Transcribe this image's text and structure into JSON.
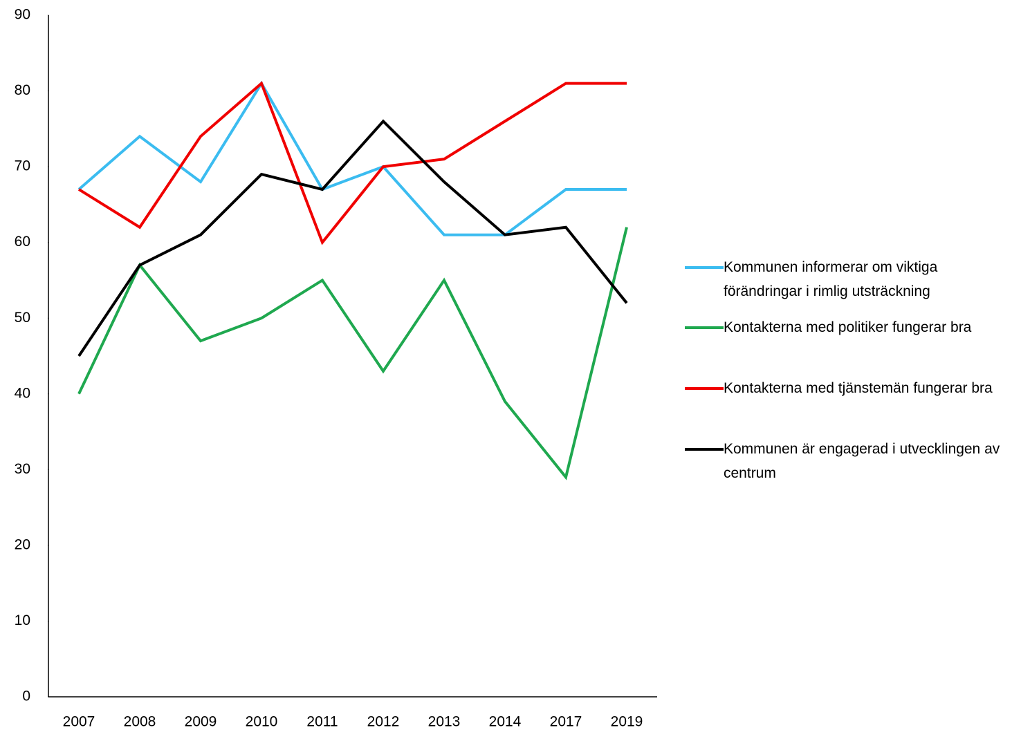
{
  "chart_data": {
    "type": "line",
    "categories": [
      "2007",
      "2008",
      "2009",
      "2010",
      "2011",
      "2012",
      "2013",
      "2014",
      "2017",
      "2019"
    ],
    "series": [
      {
        "name": "Kommunen informerar om viktiga förändringar i rimlig utsträckning",
        "color": "#3bbcf0",
        "values": [
          67,
          74,
          68,
          81,
          67,
          70,
          61,
          61,
          67,
          67
        ]
      },
      {
        "name": "Kontakterna med politiker fungerar bra",
        "color": "#1fa84f",
        "values": [
          40,
          57,
          47,
          50,
          55,
          43,
          55,
          39,
          29,
          62
        ]
      },
      {
        "name": "Kontakterna med tjänstemän fungerar bra",
        "color": "#f00000",
        "values": [
          67,
          62,
          74,
          81,
          60,
          70,
          71,
          76,
          81,
          81
        ]
      },
      {
        "name": "Kommunen är engagerad i utvecklingen av centrum",
        "color": "#000000",
        "values": [
          45,
          57,
          61,
          69,
          67,
          76,
          68,
          61,
          62,
          52
        ]
      }
    ],
    "ylim": [
      0,
      90
    ],
    "yticks": [
      0,
      10,
      20,
      30,
      40,
      50,
      60,
      70,
      80,
      90
    ],
    "grid": false,
    "legend": "right"
  }
}
